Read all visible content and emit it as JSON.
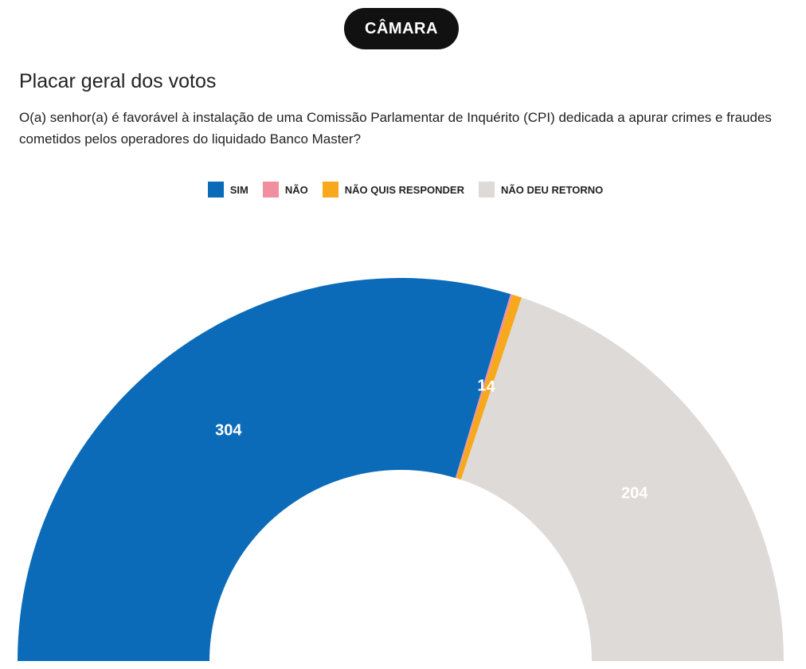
{
  "header": {
    "chamber_label": "CÂMARA"
  },
  "chart_data": {
    "type": "pie",
    "variant": "half-donut",
    "title": "Placar geral dos votos",
    "subtitle": "O(a) senhor(a) é favorável à instalação de uma Comissão Parlamentar de Inquérito (CPI) dedicada a apurar crimes e fraudes cometidos pelos operadores do liquidado Banco Master?",
    "legend_position": "top-center",
    "categories": [
      "SIM",
      "NÃO",
      "NÃO QUIS RESPONDER",
      "NÃO DEU RETORNO"
    ],
    "values": [
      304,
      1,
      4,
      204
    ],
    "colors": [
      "#0b6bb8",
      "#f0909e",
      "#f7a81b",
      "#dedad7"
    ],
    "data_labels": [
      "304",
      "1",
      "4",
      "204"
    ]
  }
}
